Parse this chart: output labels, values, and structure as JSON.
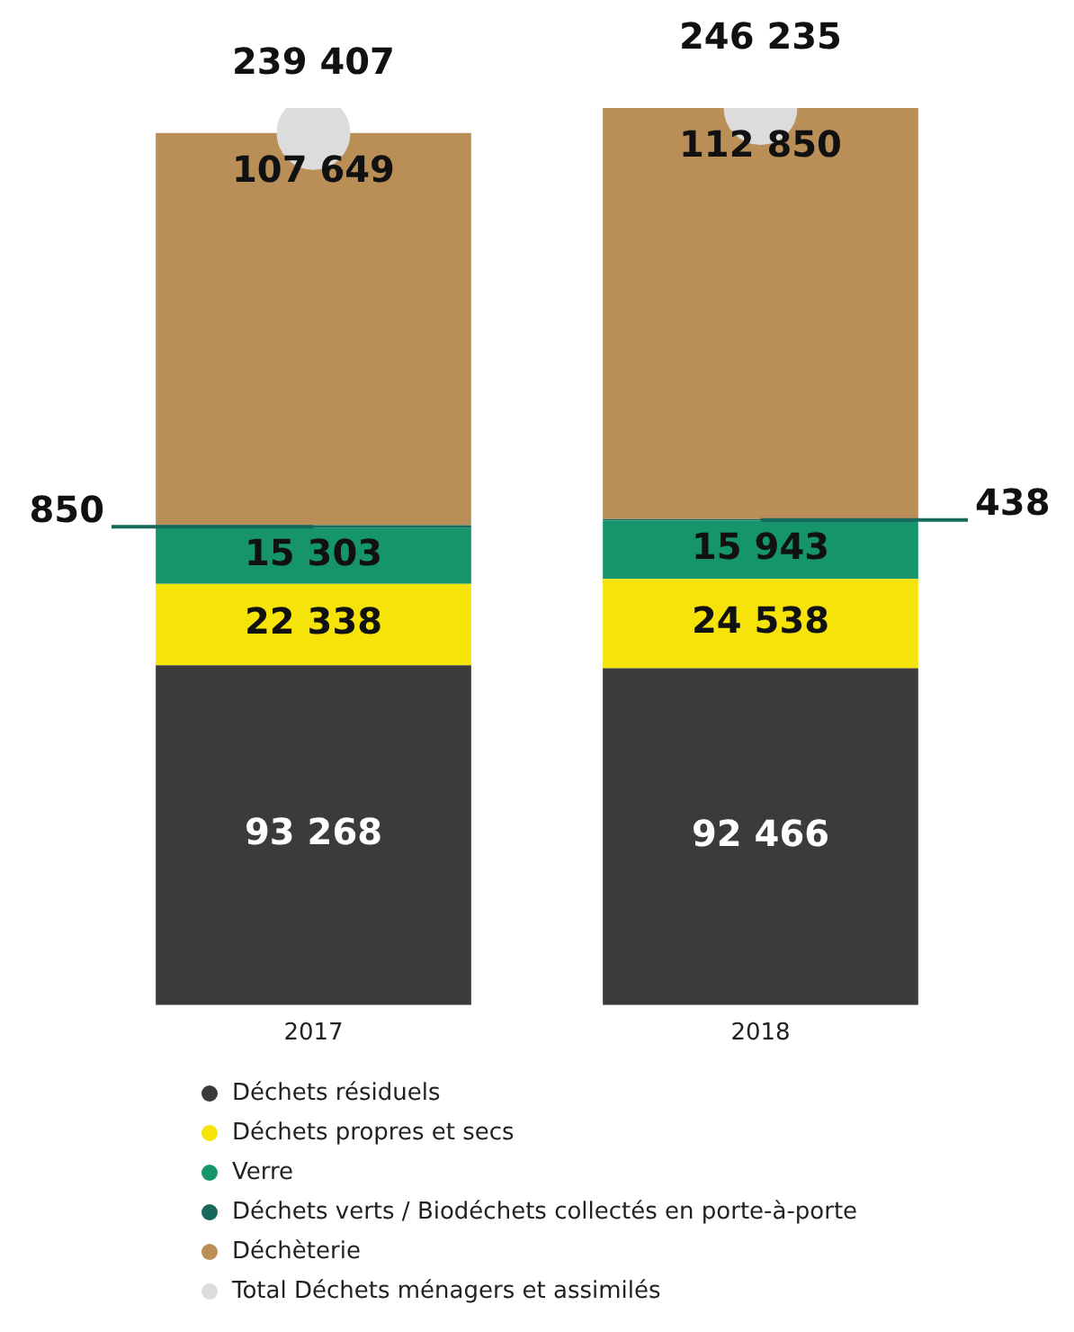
{
  "chart_data": {
    "type": "bar",
    "stacked": true,
    "categories": [
      "2017",
      "2018"
    ],
    "series": [
      {
        "name": "Déchets résiduels",
        "color": "#3b3b3b",
        "values": [
          93268,
          92466
        ],
        "value_labels": [
          "93 268",
          "92 466"
        ]
      },
      {
        "name": "Déchets propres et secs",
        "color": "#f5e30a",
        "values": [
          22338,
          24538
        ],
        "value_labels": [
          "22 338",
          "24 538"
        ]
      },
      {
        "name": "Verre",
        "color": "#16956c",
        "values": [
          15303,
          15943
        ],
        "value_labels": [
          "15 303",
          "15 943"
        ]
      },
      {
        "name": "Déchets verts / Biodéchets collectés en porte-à-porte",
        "color": "#17695b",
        "values": [
          850,
          438
        ],
        "value_labels": [
          "850",
          "438"
        ]
      },
      {
        "name": "Déchèterie",
        "color": "#b98e57",
        "values": [
          107649,
          112850
        ],
        "value_labels": [
          "107 649",
          "112 850"
        ]
      },
      {
        "name": "Total Déchets ménagers et assimilés",
        "type": "scatter",
        "color": "#dcdcdc",
        "values": [
          239407,
          246235
        ],
        "value_labels": [
          "239 407",
          "246 235"
        ]
      }
    ],
    "legend": "bottom",
    "grid": false
  }
}
